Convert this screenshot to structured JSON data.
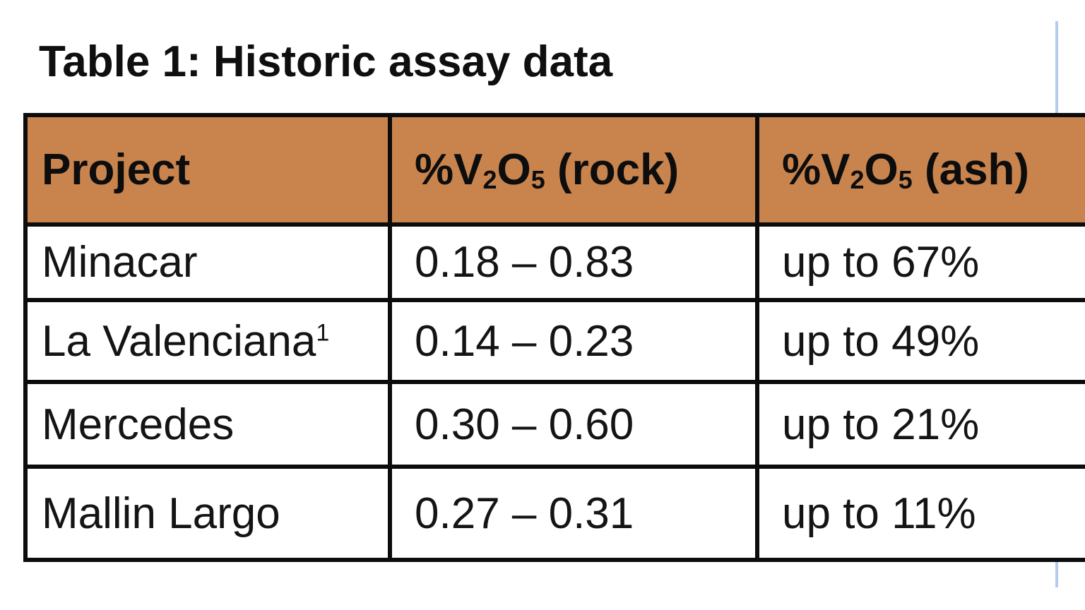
{
  "page": {
    "title": "Table 1: Historic assay data"
  },
  "colors": {
    "header_bg": "#C9844E",
    "table_border": "#0C0C0C",
    "page_edge_line": "#B3CBEC",
    "text": "#141414"
  },
  "table": {
    "header": {
      "project": "Project",
      "rock": {
        "pct_v": "%V",
        "sub_2": "2",
        "o": "O",
        "sub_5": "5",
        "suffix": " (rock)"
      },
      "ash": {
        "pct_v": "%V",
        "sub_2": "2",
        "o": "O",
        "sub_5": "5",
        "suffix": " (ash)"
      }
    },
    "rows": [
      {
        "project": "Minacar",
        "project_footnote": "",
        "rock": "0.18 – 0.83",
        "ash": "up to 67%"
      },
      {
        "project": "La Valenciana",
        "project_footnote": "1",
        "rock": "0.14 – 0.23",
        "ash": "up to 49%"
      },
      {
        "project": "Mercedes",
        "project_footnote": "",
        "rock": "0.30 – 0.60",
        "ash": "up to 21%"
      },
      {
        "project": "Mallin Largo",
        "project_footnote": "",
        "rock": "0.27 – 0.31",
        "ash": "up to 11%"
      }
    ]
  }
}
